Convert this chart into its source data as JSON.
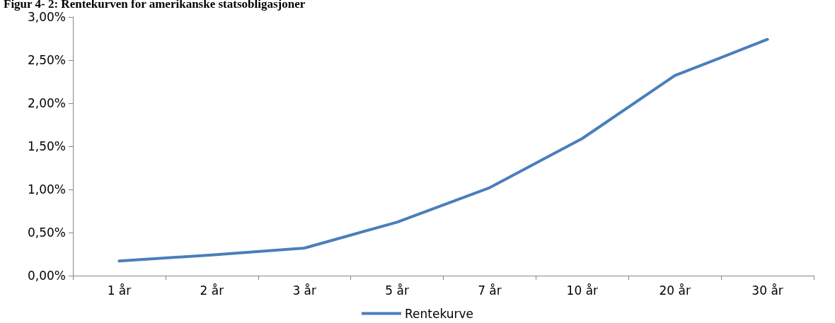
{
  "chart_data": {
    "type": "line",
    "title": "Figur 4- 2: Rentekurven for amerikanske statsobligasjoner",
    "categories": [
      "1 år",
      "2 år",
      "3 år",
      "5 år",
      "7 år",
      "10 år",
      "20 år",
      "30 år"
    ],
    "series": [
      {
        "name": "Rentekurve",
        "color": "#4a7ebb",
        "values": [
          0.17,
          0.24,
          0.32,
          0.62,
          1.02,
          1.59,
          2.32,
          2.74
        ]
      }
    ],
    "ylim": [
      0,
      3
    ],
    "yticks": [
      {
        "value": 0,
        "label": "0,00%"
      },
      {
        "value": 0.5,
        "label": "0,50%"
      },
      {
        "value": 1,
        "label": "1,00%"
      },
      {
        "value": 1.5,
        "label": "1,50%"
      },
      {
        "value": 2,
        "label": "2,00%"
      },
      {
        "value": 2.5,
        "label": "2,50%"
      },
      {
        "value": 3,
        "label": "3,00%"
      }
    ],
    "grid": false,
    "legend": "bottom",
    "marker": "none",
    "line_style": "solid"
  }
}
